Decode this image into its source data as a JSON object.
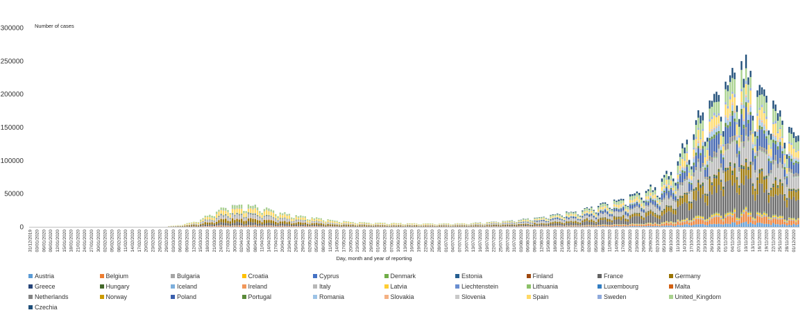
{
  "chart_data": {
    "type": "bar",
    "stacked": true,
    "ylabel": "Number of cases",
    "xlabel": "Day, month and year of reporting",
    "ylim": [
      0,
      300000
    ],
    "yticks": [
      0,
      50000,
      100000,
      150000,
      200000,
      250000,
      300000
    ],
    "grid": false,
    "legend_position": "bottom",
    "x_start": "2019-12-31",
    "x_end": "2020-12-03",
    "tick_labels": [
      "31/12/2019",
      "03/01/2020",
      "06/01/2020",
      "09/01/2020",
      "12/01/2020",
      "15/01/2020",
      "18/01/2020",
      "21/01/2020",
      "24/01/2020",
      "27/01/2020",
      "30/01/2020",
      "02/02/2020",
      "05/02/2020",
      "08/02/2020",
      "11/02/2020",
      "14/02/2020",
      "17/02/2020",
      "20/02/2020",
      "23/02/2020",
      "26/02/2020",
      "29/02/2020",
      "03/03/2020",
      "06/03/2020",
      "09/03/2020",
      "12/03/2020",
      "15/03/2020",
      "18/03/2020",
      "21/03/2020",
      "24/03/2020",
      "27/03/2020",
      "30/03/2020",
      "02/04/2020",
      "05/04/2020",
      "08/04/2020",
      "11/04/2020",
      "14/04/2020",
      "17/04/2020",
      "20/04/2020",
      "23/04/2020",
      "26/04/2020",
      "29/04/2020",
      "02/05/2020",
      "05/05/2020",
      "08/05/2020",
      "11/05/2020",
      "14/05/2020",
      "17/05/2020",
      "20/05/2020",
      "23/05/2020",
      "26/05/2020",
      "29/05/2020",
      "01/06/2020",
      "04/06/2020",
      "07/06/2020",
      "10/06/2020",
      "13/06/2020",
      "16/06/2020",
      "19/06/2020",
      "22/06/2020",
      "25/06/2020",
      "28/06/2020",
      "01/07/2020",
      "04/07/2020",
      "07/07/2020",
      "10/07/2020",
      "13/07/2020",
      "16/07/2020",
      "19/07/2020",
      "22/07/2020",
      "25/07/2020",
      "28/07/2020",
      "31/07/2020",
      "03/08/2020",
      "06/08/2020",
      "09/08/2020",
      "12/08/2020",
      "15/08/2020",
      "18/08/2020",
      "21/08/2020",
      "24/08/2020",
      "27/08/2020",
      "30/08/2020",
      "02/09/2020",
      "05/09/2020",
      "08/09/2020",
      "11/09/2020",
      "14/09/2020",
      "17/09/2020",
      "20/09/2020",
      "23/09/2020",
      "26/09/2020",
      "29/09/2020",
      "02/10/2020",
      "05/10/2020",
      "08/10/2020",
      "11/10/2020",
      "14/10/2020",
      "17/10/2020",
      "20/10/2020",
      "23/10/2020",
      "26/10/2020",
      "29/10/2020",
      "01/11/2020",
      "04/11/2020",
      "07/11/2020",
      "10/11/2020",
      "13/11/2020",
      "16/11/2020",
      "19/11/2020",
      "22/11/2020",
      "25/11/2020",
      "28/11/2020",
      "01/12/2020"
    ],
    "total_anchors": [
      [
        "2019-12-31",
        0
      ],
      [
        "2020-02-20",
        0
      ],
      [
        "2020-02-28",
        400
      ],
      [
        "2020-03-05",
        2500
      ],
      [
        "2020-03-10",
        6000
      ],
      [
        "2020-03-15",
        11000
      ],
      [
        "2020-03-20",
        22000
      ],
      [
        "2020-03-25",
        29000
      ],
      [
        "2020-03-29",
        33000
      ],
      [
        "2020-04-03",
        33000
      ],
      [
        "2020-04-10",
        31000
      ],
      [
        "2020-04-17",
        24000
      ],
      [
        "2020-04-24",
        19000
      ],
      [
        "2020-05-01",
        15000
      ],
      [
        "2020-05-08",
        12000
      ],
      [
        "2020-05-15",
        9000
      ],
      [
        "2020-05-22",
        7500
      ],
      [
        "2020-06-01",
        6000
      ],
      [
        "2020-06-15",
        5500
      ],
      [
        "2020-06-30",
        5000
      ],
      [
        "2020-07-10",
        5500
      ],
      [
        "2020-07-20",
        7500
      ],
      [
        "2020-08-01",
        10000
      ],
      [
        "2020-08-10",
        14000
      ],
      [
        "2020-08-20",
        20000
      ],
      [
        "2020-08-31",
        27000
      ],
      [
        "2020-09-10",
        37000
      ],
      [
        "2020-09-20",
        48000
      ],
      [
        "2020-10-01",
        60000
      ],
      [
        "2020-10-08",
        85000
      ],
      [
        "2020-10-14",
        120000
      ],
      [
        "2020-10-20",
        160000
      ],
      [
        "2020-10-26",
        195000
      ],
      [
        "2020-11-01",
        225000
      ],
      [
        "2020-11-06",
        250000
      ],
      [
        "2020-11-10",
        235000
      ],
      [
        "2020-11-14",
        215000
      ],
      [
        "2020-11-18",
        205000
      ],
      [
        "2020-11-22",
        185000
      ],
      [
        "2020-11-27",
        160000
      ],
      [
        "2020-12-03",
        130000
      ]
    ],
    "series": [
      {
        "name": "Austria",
        "color": "#5b9bd5",
        "spring": 0.012,
        "autumn": 0.025
      },
      {
        "name": "Belgium",
        "color": "#ed7d31",
        "spring": 0.04,
        "autumn": 0.045
      },
      {
        "name": "Bulgaria",
        "color": "#a5a5a5",
        "spring": 0.003,
        "autumn": 0.012
      },
      {
        "name": "Croatia",
        "color": "#ffc000",
        "spring": 0.002,
        "autumn": 0.012
      },
      {
        "name": "Cyprus",
        "color": "#4472c4",
        "spring": 0.001,
        "autumn": 0.001
      },
      {
        "name": "Denmark",
        "color": "#70ad47",
        "spring": 0.006,
        "autumn": 0.006
      },
      {
        "name": "Estonia",
        "color": "#255e91",
        "spring": 0.001,
        "autumn": 0.001
      },
      {
        "name": "Finland",
        "color": "#9e480e",
        "spring": 0.003,
        "autumn": 0.002
      },
      {
        "name": "France",
        "color": "#636363",
        "spring": 0.14,
        "autumn": 0.19
      },
      {
        "name": "Germany",
        "color": "#997300",
        "spring": 0.17,
        "autumn": 0.09
      },
      {
        "name": "Greece",
        "color": "#264478",
        "spring": 0.003,
        "autumn": 0.008
      },
      {
        "name": "Hungary",
        "color": "#43682b",
        "spring": 0.002,
        "autumn": 0.016
      },
      {
        "name": "Iceland",
        "color": "#7cafdd",
        "spring": 0.001,
        "autumn": 0.001
      },
      {
        "name": "Ireland",
        "color": "#f1975a",
        "spring": 0.015,
        "autumn": 0.004
      },
      {
        "name": "Italy",
        "color": "#b7b7b7",
        "spring": 0.15,
        "autumn": 0.14
      },
      {
        "name": "Latvia",
        "color": "#ffcd33",
        "spring": 0.001,
        "autumn": 0.001
      },
      {
        "name": "Liechtenstein",
        "color": "#698ed0",
        "spring": 0.001,
        "autumn": 0.001
      },
      {
        "name": "Lithuania",
        "color": "#8cc168",
        "spring": 0.001,
        "autumn": 0.005
      },
      {
        "name": "Luxembourg",
        "color": "#327dc2",
        "spring": 0.002,
        "autumn": 0.002
      },
      {
        "name": "Malta",
        "color": "#d26012",
        "spring": 0.001,
        "autumn": 0.001
      },
      {
        "name": "Netherlands",
        "color": "#848484",
        "spring": 0.03,
        "autumn": 0.03
      },
      {
        "name": "Norway",
        "color": "#cc9a00",
        "spring": 0.005,
        "autumn": 0.003
      },
      {
        "name": "Poland",
        "color": "#3a5fad",
        "spring": 0.01,
        "autumn": 0.11
      },
      {
        "name": "Portugal",
        "color": "#5a8a39",
        "spring": 0.02,
        "autumn": 0.025
      },
      {
        "name": "Romania",
        "color": "#9dc3e6",
        "spring": 0.012,
        "autumn": 0.035
      },
      {
        "name": "Slovakia",
        "color": "#f4b183",
        "spring": 0.001,
        "autumn": 0.01
      },
      {
        "name": "Slovenia",
        "color": "#c9c9c9",
        "spring": 0.001,
        "autumn": 0.008
      },
      {
        "name": "Spain",
        "color": "#ffd966",
        "spring": 0.21,
        "autumn": 0.08
      },
      {
        "name": "Sweden",
        "color": "#8faadc",
        "spring": 0.02,
        "autumn": 0.018
      },
      {
        "name": "United_Kingdom",
        "color": "#a9d18e",
        "spring": 0.13,
        "autumn": 0.1
      },
      {
        "name": "Czechia",
        "color": "#1f4e79",
        "spring": 0.005,
        "autumn": 0.06
      }
    ]
  }
}
